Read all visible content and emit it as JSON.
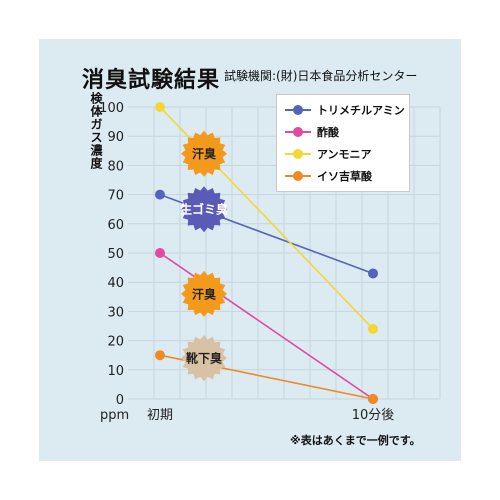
{
  "header": {
    "title": "消臭試験結果",
    "subtitle": "試験機関:(財)日本食品分析センター"
  },
  "footnote": "※表はあくまで一例です。",
  "chart_data": {
    "type": "line",
    "title": "消臭試験結果",
    "xlabel": "",
    "ylabel": "検体ガス濃度",
    "y_unit": "ppm",
    "categories": [
      "初期",
      "10分後"
    ],
    "ylim": [
      0,
      100
    ],
    "yticks": [
      0,
      10,
      20,
      30,
      40,
      50,
      60,
      70,
      80,
      90,
      100
    ],
    "grid": true,
    "legend_position": "top-right",
    "series": [
      {
        "name": "トリメチルアミン",
        "values": [
          70,
          43
        ],
        "color": "#5564b8"
      },
      {
        "name": "酢酸",
        "values": [
          50,
          0
        ],
        "color": "#e04aa0"
      },
      {
        "name": "アンモニア",
        "values": [
          100,
          24
        ],
        "color": "#f5d734"
      },
      {
        "name": "イソ吉草酸",
        "values": [
          15,
          0
        ],
        "color": "#ef8a23"
      }
    ],
    "annotations": [
      {
        "text": "汗臭",
        "value": 84,
        "color": "#f39a1c",
        "text_color": "#222222"
      },
      {
        "text": "生ゴミ臭",
        "value": 65,
        "color": "#5a5bb6",
        "text_color": "#ffffff"
      },
      {
        "text": "汗臭",
        "value": 36,
        "color": "#f39a1c",
        "text_color": "#222222"
      },
      {
        "text": "靴下臭",
        "value": 14,
        "color": "#d9c1a3",
        "text_color": "#222222"
      }
    ]
  }
}
